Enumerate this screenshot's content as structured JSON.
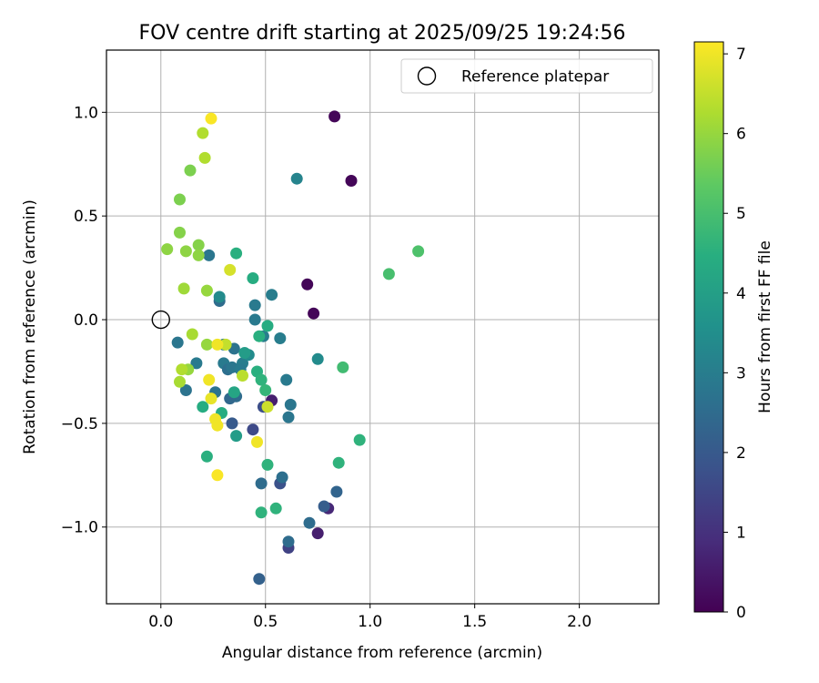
{
  "chart_data": {
    "type": "scatter",
    "title": "FOV centre drift starting at 2025/09/25 19:24:56",
    "xlabel": "Angular distance from reference (arcmin)",
    "ylabel": "Rotation from reference (arcmin)",
    "xlim": [
      -0.26,
      2.38
    ],
    "ylim": [
      -1.37,
      1.3
    ],
    "xticks": [
      0.0,
      0.5,
      1.0,
      1.5,
      2.0
    ],
    "xtick_labels": [
      "0.0",
      "0.5",
      "1.0",
      "1.5",
      "2.0"
    ],
    "yticks": [
      -1.0,
      -0.5,
      0.0,
      0.5,
      1.0
    ],
    "ytick_labels": [
      "−1.0",
      "−0.5",
      "0.0",
      "0.5",
      "1.0"
    ],
    "grid": true,
    "legend": {
      "position": "top-right",
      "entries": [
        "Reference platepar"
      ]
    },
    "reference": {
      "x": 0.0,
      "y": 0.0
    },
    "colorbar": {
      "label": "Hours from first FF file",
      "range": [
        0,
        7.15
      ],
      "ticks": [
        0,
        1,
        2,
        3,
        4,
        5,
        6,
        7
      ],
      "tick_labels": [
        "0",
        "1",
        "2",
        "3",
        "4",
        "5",
        "6",
        "7"
      ]
    },
    "points": [
      {
        "x": 0.83,
        "y": 0.98,
        "h": 0.1
      },
      {
        "x": 0.91,
        "y": 0.67,
        "h": 0.1
      },
      {
        "x": 0.7,
        "y": 0.17,
        "h": 0.1
      },
      {
        "x": 0.73,
        "y": 0.03,
        "h": 0.1
      },
      {
        "x": 0.53,
        "y": -0.39,
        "h": 0.6
      },
      {
        "x": 0.49,
        "y": -0.42,
        "h": 1.7
      },
      {
        "x": 0.75,
        "y": -1.03,
        "h": 0.6
      },
      {
        "x": 0.8,
        "y": -0.91,
        "h": 0.8
      },
      {
        "x": 0.61,
        "y": -1.1,
        "h": 1.4
      },
      {
        "x": 0.57,
        "y": -0.79,
        "h": 1.8
      },
      {
        "x": 0.44,
        "y": -0.53,
        "h": 1.6
      },
      {
        "x": 0.34,
        "y": -0.5,
        "h": 2.0
      },
      {
        "x": 0.47,
        "y": -1.25,
        "h": 2.2
      },
      {
        "x": 0.78,
        "y": -0.9,
        "h": 2.1
      },
      {
        "x": 0.84,
        "y": -0.83,
        "h": 2.3
      },
      {
        "x": 0.71,
        "y": -0.98,
        "h": 2.5
      },
      {
        "x": 0.61,
        "y": -1.07,
        "h": 2.5
      },
      {
        "x": 0.58,
        "y": -0.76,
        "h": 2.6
      },
      {
        "x": 0.48,
        "y": -0.79,
        "h": 2.5
      },
      {
        "x": 0.61,
        "y": -0.47,
        "h": 2.8
      },
      {
        "x": 0.62,
        "y": -0.41,
        "h": 2.8
      },
      {
        "x": 0.6,
        "y": -0.29,
        "h": 2.9
      },
      {
        "x": 0.57,
        "y": -0.09,
        "h": 3.0
      },
      {
        "x": 0.53,
        "y": 0.12,
        "h": 3.0
      },
      {
        "x": 0.45,
        "y": 0.07,
        "h": 2.9
      },
      {
        "x": 0.45,
        "y": 0.0,
        "h": 2.9
      },
      {
        "x": 0.49,
        "y": -0.08,
        "h": 3.0
      },
      {
        "x": 0.65,
        "y": 0.68,
        "h": 3.2
      },
      {
        "x": 0.75,
        "y": -0.19,
        "h": 3.4
      },
      {
        "x": 0.23,
        "y": 0.31,
        "h": 2.8
      },
      {
        "x": 0.28,
        "y": 0.09,
        "h": 2.5
      },
      {
        "x": 0.28,
        "y": 0.11,
        "h": 3.4
      },
      {
        "x": 0.08,
        "y": -0.11,
        "h": 2.8
      },
      {
        "x": 0.17,
        "y": -0.21,
        "h": 2.9
      },
      {
        "x": 0.12,
        "y": -0.34,
        "h": 2.7
      },
      {
        "x": 0.26,
        "y": -0.35,
        "h": 2.7
      },
      {
        "x": 0.3,
        "y": -0.12,
        "h": 2.8
      },
      {
        "x": 0.3,
        "y": -0.21,
        "h": 2.9
      },
      {
        "x": 0.32,
        "y": -0.24,
        "h": 2.6
      },
      {
        "x": 0.34,
        "y": -0.23,
        "h": 2.8
      },
      {
        "x": 0.35,
        "y": -0.14,
        "h": 2.7
      },
      {
        "x": 0.36,
        "y": -0.37,
        "h": 2.5
      },
      {
        "x": 0.33,
        "y": -0.38,
        "h": 2.4
      },
      {
        "x": 0.39,
        "y": -0.21,
        "h": 3.0
      },
      {
        "x": 0.38,
        "y": -0.24,
        "h": 2.9
      },
      {
        "x": 0.42,
        "y": -0.17,
        "h": 3.4
      },
      {
        "x": 0.4,
        "y": -0.16,
        "h": 3.9
      },
      {
        "x": 0.36,
        "y": 0.32,
        "h": 4.5
      },
      {
        "x": 0.44,
        "y": 0.2,
        "h": 4.4
      },
      {
        "x": 0.36,
        "y": -0.56,
        "h": 3.9
      },
      {
        "x": 0.35,
        "y": -0.35,
        "h": 4.2
      },
      {
        "x": 0.29,
        "y": -0.45,
        "h": 4.4
      },
      {
        "x": 0.2,
        "y": -0.42,
        "h": 4.4
      },
      {
        "x": 0.22,
        "y": -0.66,
        "h": 4.5
      },
      {
        "x": 0.47,
        "y": -0.08,
        "h": 4.5
      },
      {
        "x": 0.51,
        "y": -0.03,
        "h": 4.4
      },
      {
        "x": 0.46,
        "y": -0.25,
        "h": 4.5
      },
      {
        "x": 0.48,
        "y": -0.29,
        "h": 4.6
      },
      {
        "x": 0.5,
        "y": -0.34,
        "h": 4.7
      },
      {
        "x": 0.51,
        "y": -0.7,
        "h": 4.6
      },
      {
        "x": 0.55,
        "y": -0.91,
        "h": 4.6
      },
      {
        "x": 0.48,
        "y": -0.93,
        "h": 4.6
      },
      {
        "x": 0.95,
        "y": -0.58,
        "h": 4.6
      },
      {
        "x": 0.85,
        "y": -0.69,
        "h": 4.6
      },
      {
        "x": 0.87,
        "y": -0.23,
        "h": 4.9
      },
      {
        "x": 1.09,
        "y": 0.22,
        "h": 5.0
      },
      {
        "x": 1.23,
        "y": 0.33,
        "h": 5.1
      },
      {
        "x": 0.14,
        "y": 0.72,
        "h": 5.7
      },
      {
        "x": 0.09,
        "y": 0.58,
        "h": 5.7
      },
      {
        "x": 0.09,
        "y": 0.42,
        "h": 5.8
      },
      {
        "x": 0.03,
        "y": 0.34,
        "h": 5.9
      },
      {
        "x": 0.12,
        "y": 0.33,
        "h": 5.9
      },
      {
        "x": 0.18,
        "y": 0.36,
        "h": 5.8
      },
      {
        "x": 0.18,
        "y": 0.31,
        "h": 5.9
      },
      {
        "x": 0.11,
        "y": 0.15,
        "h": 6.1
      },
      {
        "x": 0.22,
        "y": 0.14,
        "h": 6.0
      },
      {
        "x": 0.22,
        "y": -0.12,
        "h": 6.0
      },
      {
        "x": 0.13,
        "y": -0.24,
        "h": 6.0
      },
      {
        "x": 0.1,
        "y": -0.24,
        "h": 6.3
      },
      {
        "x": 0.09,
        "y": -0.3,
        "h": 6.2
      },
      {
        "x": 0.15,
        "y": -0.07,
        "h": 6.2
      },
      {
        "x": 0.39,
        "y": -0.27,
        "h": 6.4
      },
      {
        "x": 0.31,
        "y": -0.12,
        "h": 6.5
      },
      {
        "x": 0.2,
        "y": 0.9,
        "h": 6.3
      },
      {
        "x": 0.21,
        "y": 0.78,
        "h": 6.3
      },
      {
        "x": 0.24,
        "y": 0.97,
        "h": 7.1
      },
      {
        "x": 0.33,
        "y": 0.24,
        "h": 6.7
      },
      {
        "x": 0.51,
        "y": -0.42,
        "h": 6.6
      },
      {
        "x": 0.27,
        "y": -0.12,
        "h": 7.0
      },
      {
        "x": 0.23,
        "y": -0.29,
        "h": 7.0
      },
      {
        "x": 0.24,
        "y": -0.38,
        "h": 6.9
      },
      {
        "x": 0.26,
        "y": -0.48,
        "h": 7.0
      },
      {
        "x": 0.27,
        "y": -0.51,
        "h": 7.0
      },
      {
        "x": 0.46,
        "y": -0.59,
        "h": 7.0
      },
      {
        "x": 0.27,
        "y": -0.75,
        "h": 7.1
      }
    ]
  }
}
